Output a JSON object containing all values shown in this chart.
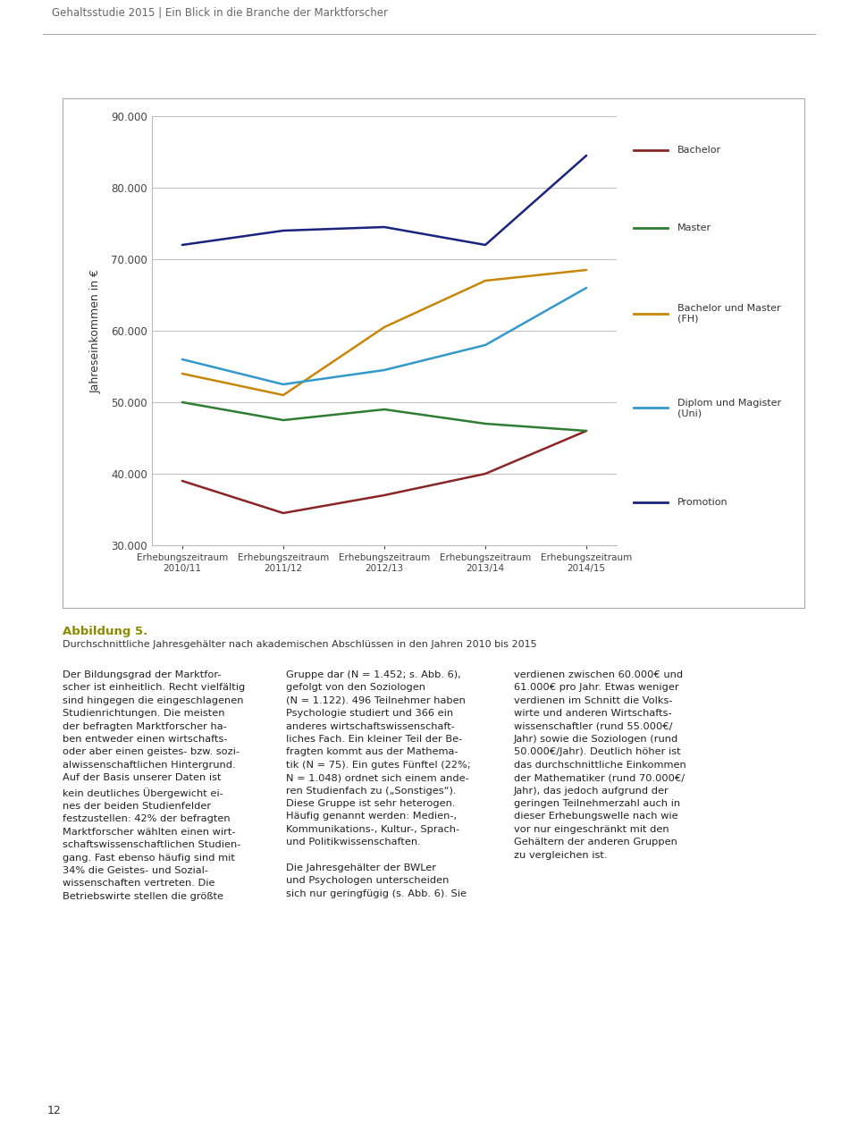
{
  "x_labels": [
    "Erhebungszeitraum\n2010/11",
    "Erhebungszeitraum\n2011/12",
    "Erhebungszeitraum\n2012/13",
    "Erhebungszeitraum\n2013/14",
    "Erhebungszeitraum\n2014/15"
  ],
  "series": [
    {
      "name": "Bachelor",
      "color": "#8B2525",
      "values": [
        39000,
        34500,
        37000,
        40000,
        46000
      ]
    },
    {
      "name": "Master",
      "color": "#2E7D32",
      "values": [
        50000,
        47500,
        49000,
        47000,
        46000
      ]
    },
    {
      "name": "Bachelor und Master\n(FH)",
      "color": "#C8870A",
      "values": [
        54000,
        51000,
        60500,
        67000,
        68500
      ]
    },
    {
      "name": "Diplom und Magister\n(Uni)",
      "color": "#3399CC",
      "values": [
        56000,
        52500,
        54500,
        58000,
        66000
      ]
    },
    {
      "name": "Promotion",
      "color": "#1A237E",
      "values": [
        72000,
        74000,
        74500,
        72000,
        84500
      ]
    }
  ],
  "ylabel": "Jahreseinkommen in €",
  "ylim": [
    30000,
    90000
  ],
  "yticks": [
    30000,
    40000,
    50000,
    60000,
    70000,
    80000,
    90000
  ],
  "background_color": "#ffffff",
  "grid_color": "#bbbbbb",
  "header_text": "Gehaltsstudie 2015 | Ein Blick in die Branche der Marktforscher",
  "figure_number": "Abbildung 5.",
  "caption": "Durchschnittliche Jahresgehälter nach akademischen Abschlüssen in den Jahren 2010 bis 2015",
  "line_width": 1.8,
  "body_left": "Der Bildungsgrad der Marktfor-\nscher ist einheitlich. Recht vielfaltig\nsind hingegen die eingeschlagenen\nStudienrichtungen. Die meisten\nder befragten Marktforscher ha-\nben entweder einen wirtschafts-\noder aber einen geistes- bzw. sozi-\nalwissenschaftlichen Hintergrund.\nAuf der Basis unserer Daten ist\nkein deutliches Ubergewicht ei-\nnes der beiden Studienfelder\nfestzustellen: 42% der befragten\nMarktforscher wahlten einen wirt-\nschaftswissenschaftlichen Studien-\ngang. Fast ebenso haufig sind mit\n34% die Geistes- und Sozial-\nwissenschaften vertreten. Die\nBetriebswirte stellen die großte",
  "body_mid": "Gruppe dar (N = 1.452; s. Abb. 6),\ngefolgt von den Soziologen\n(N = 1.122). 496 Teilnehmer haben\nPsychologie studiert und 366 ein\nanderes wirtschaftswissenschaft-\nliches Fach. Ein kleiner Teil der Be-\nfragten kommt aus der Mathema-\ntik (N = 75). Ein gutes Fünftel (22%;\nN = 1.048) ordnet sich einem ande-\nren Studienfach zu („Sonstiges“).\nDiese Gruppe ist sehr heterogen.\nHäufig genannt werden: Medien-,\nKommunikations-, Kultur-, Sprach-\nund Politikwissenschaften.\n\nDie Jahresgehälter der BWLer\nund Psychologen unterscheiden\nsich nur geringfügig (s. Abb. 6). Sie",
  "body_right": "verdienen zwischen 60.000€ und\n61.000€ pro Jahr. Etwas weniger\nverdienen im Schnitt die Volks-\nwirte und anderen Wirtschafts-\nwissenschaftler (rund 55.000€/\nJahr) sowie die Soziologen (rund\n50.000€/Jahr). Deutlich höher ist\ndas durchschnittliche Einkommen\nder Mathematiker (rund 70.000€/\nJahr), das jedoch aufgrund der\ngeringen Teilnehmerzahl auch in\ndieser Erhebungswelle nach wie\nvor nur eingeschränkt mit den\nGehältern der anderen Gruppen\nzu vergleichen ist.",
  "page_number": "12"
}
